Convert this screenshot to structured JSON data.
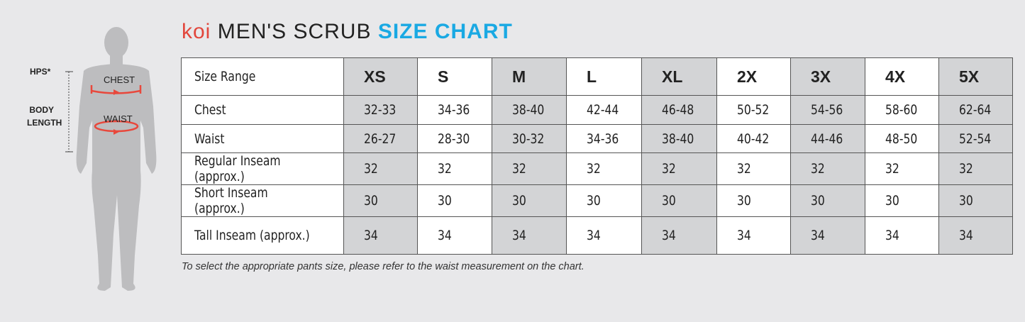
{
  "figure": {
    "hps_label": "HPS*",
    "body_label_1": "BODY",
    "body_label_2": "LENGTH",
    "chest_label": "CHEST",
    "waist_label": "WAIST"
  },
  "title": {
    "brand": "koi",
    "main": "MEN'S SCRUB",
    "accent": "SIZE CHART"
  },
  "colors": {
    "brand": "#e2463c",
    "accent": "#1aa9e3",
    "shaded_column": "#d3d4d6",
    "measure_arrow": "#e8483c"
  },
  "table": {
    "header_label": "Size Range",
    "sizes": [
      "XS",
      "S",
      "M",
      "L",
      "XL",
      "2X",
      "3X",
      "4X",
      "5X"
    ],
    "shaded_sizes": [
      "XS",
      "M",
      "XL",
      "3X",
      "5X"
    ],
    "rows": [
      {
        "label": "Chest",
        "values": [
          "32-33",
          "34-36",
          "38-40",
          "42-44",
          "46-48",
          "50-52",
          "54-56",
          "58-60",
          "62-64"
        ]
      },
      {
        "label": "Waist",
        "values": [
          "26-27",
          "28-30",
          "30-32",
          "34-36",
          "38-40",
          "40-42",
          "44-46",
          "48-50",
          "52-54"
        ]
      },
      {
        "label": "Regular Inseam (approx.)",
        "values": [
          "32",
          "32",
          "32",
          "32",
          "32",
          "32",
          "32",
          "32",
          "32"
        ]
      },
      {
        "label": "Short Inseam (approx.)",
        "values": [
          "30",
          "30",
          "30",
          "30",
          "30",
          "30",
          "30",
          "30",
          "30"
        ]
      },
      {
        "label": "Tall Inseam (approx.)",
        "values": [
          "34",
          "34",
          "34",
          "34",
          "34",
          "34",
          "34",
          "34",
          "34"
        ]
      }
    ]
  },
  "note": "To select the appropriate pants size, please refer to the waist measurement on the chart."
}
